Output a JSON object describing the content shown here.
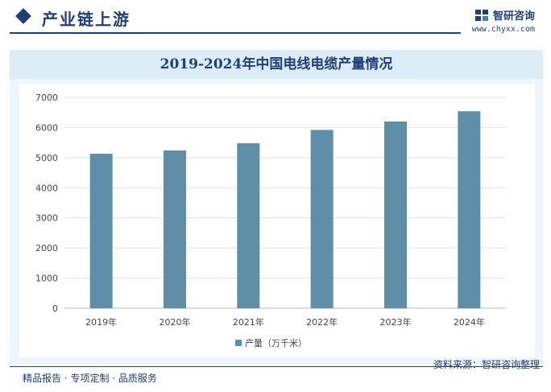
{
  "header": {
    "section_title": "产业链上游",
    "brand_name": "智研咨询",
    "brand_url": "www.chyxx.com"
  },
  "chart_data": {
    "type": "bar",
    "title": "2019-2024年中国电线电缆产量情况",
    "categories": [
      "2019年",
      "2020年",
      "2021年",
      "2022年",
      "2023年",
      "2024年"
    ],
    "series": [
      {
        "name": "产量（万千米）",
        "values": [
          5130,
          5240,
          5480,
          5920,
          6200,
          6540
        ]
      }
    ],
    "ylim": [
      0,
      7000
    ],
    "yticks": [
      0,
      1000,
      2000,
      3000,
      4000,
      5000,
      6000,
      7000
    ],
    "grid": true,
    "legend_position": "bottom",
    "bar_color": "#5f8fa8"
  },
  "footer": {
    "tagline": "精品报告 · 专项定制 · 品质服务",
    "source": "资料来源：智研咨询整理"
  }
}
